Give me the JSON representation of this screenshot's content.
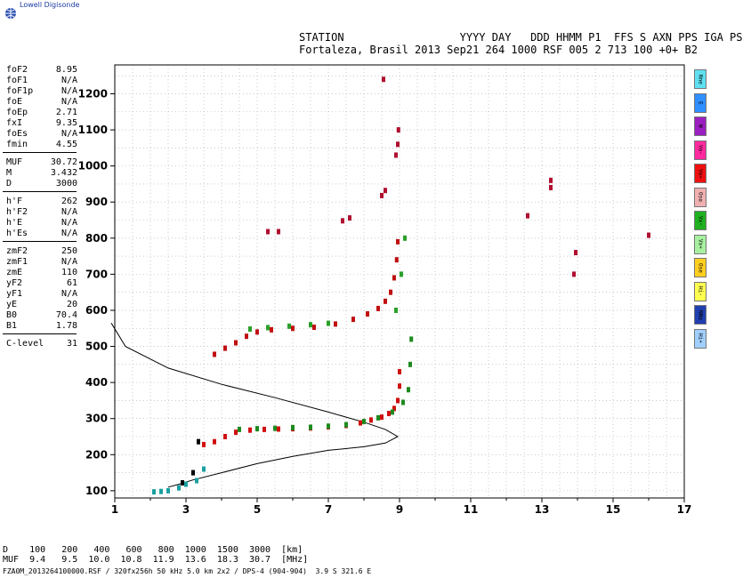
{
  "app_title": "Lowell Digisonde",
  "header": {
    "line1": "STATION                  YYYY DAY   DDD HHMM P1  FFS S AXN PPS IGA PS",
    "line2": "Fortaleza, Brasil 2013 Sep21 264 1000 RSF 005 2 713 100 +0+ B2"
  },
  "params": [
    {
      "label": "foF2",
      "value": "8.95"
    },
    {
      "label": "foF1",
      "value": "N/A"
    },
    {
      "label": "foF1p",
      "value": "N/A"
    },
    {
      "label": "foE",
      "value": "N/A"
    },
    {
      "label": "foEp",
      "value": "2.71"
    },
    {
      "label": "fxI",
      "value": "9.35"
    },
    {
      "label": "foEs",
      "value": "N/A"
    },
    {
      "label": "fmin",
      "value": "4.55"
    },
    {
      "label": "MUF",
      "value": "30.72"
    },
    {
      "label": "M",
      "value": "3.432"
    },
    {
      "label": "D",
      "value": "3000"
    },
    {
      "label": "h'F",
      "value": "262"
    },
    {
      "label": "h'F2",
      "value": "N/A"
    },
    {
      "label": "h'E",
      "value": "N/A"
    },
    {
      "label": "h'Es",
      "value": "N/A"
    },
    {
      "label": "zmF2",
      "value": "250"
    },
    {
      "label": "zmF1",
      "value": "N/A"
    },
    {
      "label": "zmE",
      "value": "110"
    },
    {
      "label": "yF2",
      "value": "61"
    },
    {
      "label": "yF1",
      "value": "N/A"
    },
    {
      "label": "yE",
      "value": "20"
    },
    {
      "label": "B0",
      "value": "70.4"
    },
    {
      "label": "B1",
      "value": "1.78"
    },
    {
      "label": "C-level",
      "value": "31"
    }
  ],
  "legend": [
    {
      "label": "Nne",
      "color": "#5ee0f0"
    },
    {
      "label": "E",
      "color": "#2f8fff"
    },
    {
      "label": "W",
      "color": "#9a1fc0"
    },
    {
      "label": "Vo-",
      "color": "#ff2aa0"
    },
    {
      "label": "Vo+",
      "color": "#ee1010"
    },
    {
      "label": "Oso",
      "color": "#f0b0b0"
    },
    {
      "label": "Vx-",
      "color": "#20b020"
    },
    {
      "label": "Vx+",
      "color": "#a8f0a0"
    },
    {
      "label": "Ose",
      "color": "#ffcf20"
    },
    {
      "label": "Hi-",
      "color": "#ffff50"
    },
    {
      "label": "NNo",
      "color": "#1f3fb0"
    },
    {
      "label": "Hi+",
      "color": "#a0d0ff"
    }
  ],
  "bottom": {
    "d_row": "D    100   200   400   600   800  1000  1500  3000  [km]",
    "muf_row": "MUF  9.4   9.5  10.0  10.8  11.9  13.6  18.3  30.7  [MHz]",
    "file_line": "FZA0M_2013264100000.RSF / 320fx256h 50 kHz 5.0 km 2x2 / DPS-4 (904-904)  3.9 S 321.6 E"
  },
  "chart_data": {
    "type": "scatter",
    "xlim": [
      1,
      17
    ],
    "ylim": [
      80,
      1280
    ],
    "x_ticks": [
      1,
      3,
      5,
      7,
      9,
      11,
      13,
      15,
      17
    ],
    "y_ticks": [
      100,
      200,
      300,
      400,
      500,
      600,
      700,
      800,
      900,
      1000,
      1100,
      1200
    ],
    "grid": true,
    "series": [
      {
        "color": "#d01010",
        "points": [
          [
            3.5,
            228
          ],
          [
            3.8,
            236
          ],
          [
            4.1,
            250
          ],
          [
            4.4,
            262
          ],
          [
            4.8,
            268
          ],
          [
            5.2,
            270
          ],
          [
            5.6,
            271
          ],
          [
            6.0,
            272
          ],
          [
            6.5,
            274
          ],
          [
            7.0,
            277
          ],
          [
            7.5,
            281
          ],
          [
            7.9,
            288
          ],
          [
            8.2,
            296
          ],
          [
            8.5,
            304
          ],
          [
            8.7,
            314
          ],
          [
            8.85,
            328
          ],
          [
            8.95,
            350
          ],
          [
            9.0,
            390
          ],
          [
            9.0,
            430
          ]
        ]
      },
      {
        "color": "#1f8a1f",
        "points": [
          [
            4.5,
            270
          ],
          [
            5.0,
            272
          ],
          [
            5.5,
            273
          ],
          [
            6.0,
            275
          ],
          [
            6.5,
            276
          ],
          [
            7.0,
            279
          ],
          [
            7.5,
            283
          ],
          [
            8.0,
            292
          ],
          [
            8.4,
            302
          ],
          [
            8.8,
            318
          ],
          [
            9.1,
            345
          ],
          [
            9.25,
            380
          ],
          [
            9.3,
            450
          ],
          [
            9.33,
            520
          ]
        ]
      },
      {
        "color": "#c01010",
        "points": [
          [
            3.8,
            478
          ],
          [
            4.1,
            495
          ],
          [
            4.4,
            510
          ],
          [
            4.7,
            528
          ],
          [
            5.0,
            540
          ],
          [
            5.4,
            546
          ],
          [
            6.0,
            550
          ],
          [
            6.6,
            553
          ],
          [
            7.2,
            562
          ],
          [
            7.7,
            575
          ],
          [
            8.1,
            590
          ],
          [
            8.4,
            605
          ],
          [
            8.6,
            625
          ],
          [
            8.75,
            650
          ],
          [
            8.85,
            690
          ],
          [
            8.92,
            740
          ],
          [
            8.95,
            790
          ]
        ]
      },
      {
        "color": "#2aa02a",
        "points": [
          [
            4.8,
            548
          ],
          [
            5.3,
            552
          ],
          [
            5.9,
            556
          ],
          [
            6.5,
            560
          ],
          [
            7.0,
            564
          ],
          [
            8.9,
            600
          ],
          [
            9.05,
            700
          ],
          [
            9.15,
            800
          ]
        ]
      },
      {
        "color": "#b01030",
        "points": [
          [
            5.3,
            818
          ],
          [
            5.6,
            818
          ],
          [
            7.4,
            848
          ],
          [
            7.6,
            856
          ],
          [
            8.5,
            918
          ],
          [
            8.6,
            932
          ],
          [
            8.9,
            1030
          ],
          [
            8.95,
            1060
          ],
          [
            8.97,
            1100
          ],
          [
            8.55,
            1240
          ],
          [
            12.6,
            862
          ],
          [
            13.25,
            940
          ],
          [
            13.25,
            960
          ],
          [
            13.9,
            700
          ],
          [
            13.95,
            760
          ],
          [
            16.0,
            808
          ]
        ]
      },
      {
        "color": "#1aa0a0",
        "points": [
          [
            2.1,
            97
          ],
          [
            2.3,
            98
          ],
          [
            2.5,
            100
          ],
          [
            2.8,
            108
          ],
          [
            3.0,
            118
          ],
          [
            3.3,
            128
          ],
          [
            3.5,
            160
          ]
        ]
      },
      {
        "color": "#000000",
        "points": [
          [
            3.35,
            236
          ],
          [
            3.2,
            150
          ],
          [
            2.9,
            122
          ]
        ]
      }
    ],
    "profile": {
      "color": "#000000",
      "points": [
        [
          0.9,
          565
        ],
        [
          1.3,
          500
        ],
        [
          2.5,
          440
        ],
        [
          4.0,
          395
        ],
        [
          5.5,
          358
        ],
        [
          7.0,
          318
        ],
        [
          8.0,
          290
        ],
        [
          8.6,
          270
        ],
        [
          8.95,
          250
        ],
        [
          8.6,
          232
        ],
        [
          8.0,
          222
        ],
        [
          7.0,
          212
        ],
        [
          6.0,
          195
        ],
        [
          5.0,
          175
        ],
        [
          4.0,
          150
        ],
        [
          3.2,
          130
        ],
        [
          2.8,
          118
        ],
        [
          2.5,
          110
        ]
      ]
    }
  }
}
